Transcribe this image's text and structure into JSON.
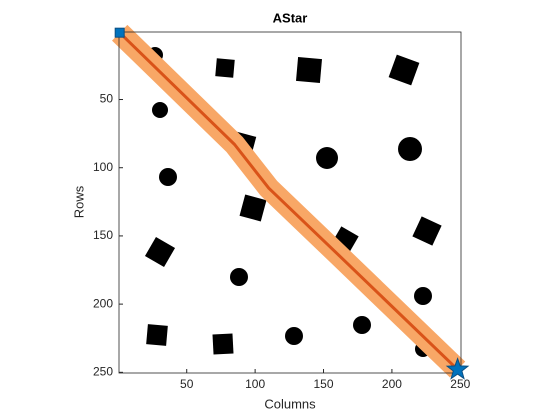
{
  "chart_data": {
    "type": "line",
    "title": "AStar",
    "xlabel": "Columns",
    "ylabel": "Rows",
    "xlim": [
      0.5,
      250.5
    ],
    "ylim": [
      0.5,
      250.5
    ],
    "y_reversed": true,
    "xticks": [
      50,
      100,
      150,
      200,
      250
    ],
    "yticks": [
      50,
      100,
      150,
      200,
      250
    ],
    "series": [
      {
        "color": "#d95319",
        "band_color": "#f8a766",
        "x": [
          1,
          85,
          110,
          160,
          248
        ],
        "y": [
          1,
          83,
          115,
          163,
          248
        ]
      },
      {
        "color": "#0072bd",
        "marker": "square",
        "x": [
          1
        ],
        "y": [
          1
        ]
      },
      {
        "color": "#0072bd",
        "marker": "star",
        "x": [
          248
        ],
        "y": [
          248
        ]
      }
    ]
  }
}
